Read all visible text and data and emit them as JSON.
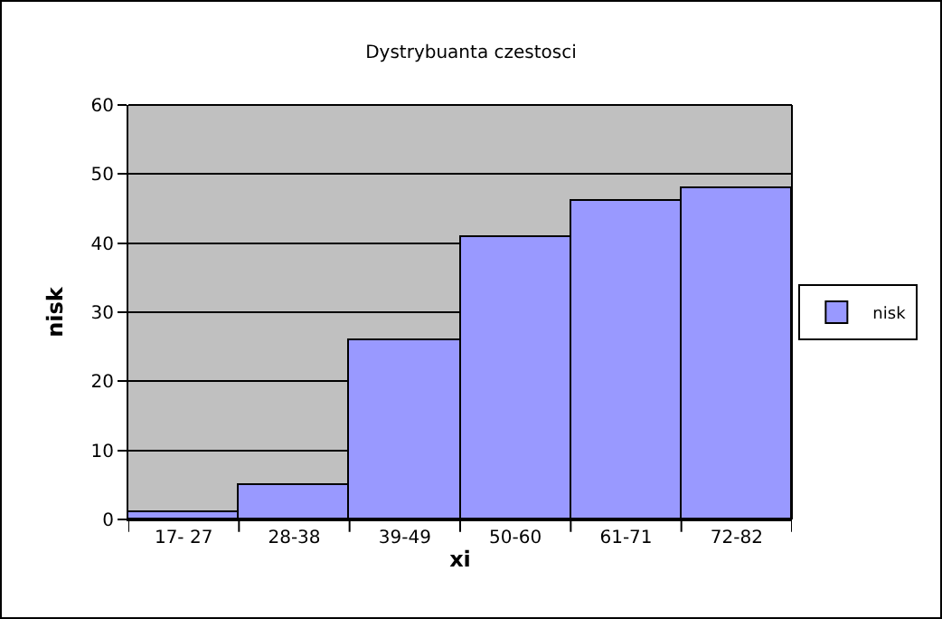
{
  "chart_data": {
    "type": "bar",
    "title": "Dystrybuanta czestosci",
    "xlabel": "xi",
    "ylabel": "nisk",
    "categories": [
      "17- 27",
      "28-38",
      "39-49",
      "50-60",
      "61-71",
      "72-82"
    ],
    "series": [
      {
        "name": "nisk",
        "color": "#9999ff",
        "values": [
          1,
          5,
          26,
          41,
          46,
          48
        ]
      }
    ],
    "ylim": [
      0,
      60
    ],
    "yticks": [
      0,
      10,
      20,
      30,
      40,
      50,
      60
    ],
    "grid": "y",
    "legend": "right"
  }
}
